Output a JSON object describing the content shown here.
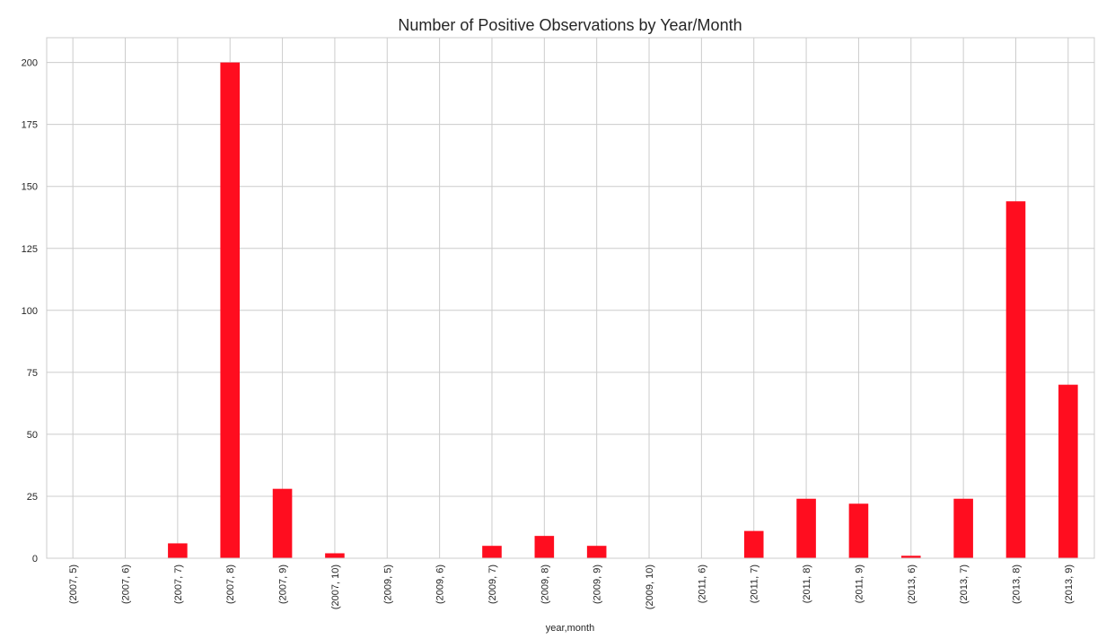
{
  "chart_data": {
    "type": "bar",
    "title": "Number of Positive Observations by Year/Month",
    "xlabel": "year,month",
    "ylabel": "",
    "categories": [
      "(2007, 5)",
      "(2007, 6)",
      "(2007, 7)",
      "(2007, 8)",
      "(2007, 9)",
      "(2007, 10)",
      "(2009, 5)",
      "(2009, 6)",
      "(2009, 7)",
      "(2009, 8)",
      "(2009, 9)",
      "(2009, 10)",
      "(2011, 6)",
      "(2011, 7)",
      "(2011, 8)",
      "(2011, 9)",
      "(2013, 6)",
      "(2013, 7)",
      "(2013, 8)",
      "(2013, 9)"
    ],
    "values": [
      0,
      0,
      6,
      200,
      28,
      2,
      0,
      0,
      5,
      9,
      5,
      0,
      0,
      11,
      24,
      22,
      1,
      24,
      144,
      70
    ],
    "ylim": [
      0,
      210
    ],
    "yticks": [
      0,
      25,
      50,
      75,
      100,
      125,
      150,
      175,
      200
    ],
    "bar_color": "#ff0d1f",
    "grid": true,
    "legend": "none"
  }
}
